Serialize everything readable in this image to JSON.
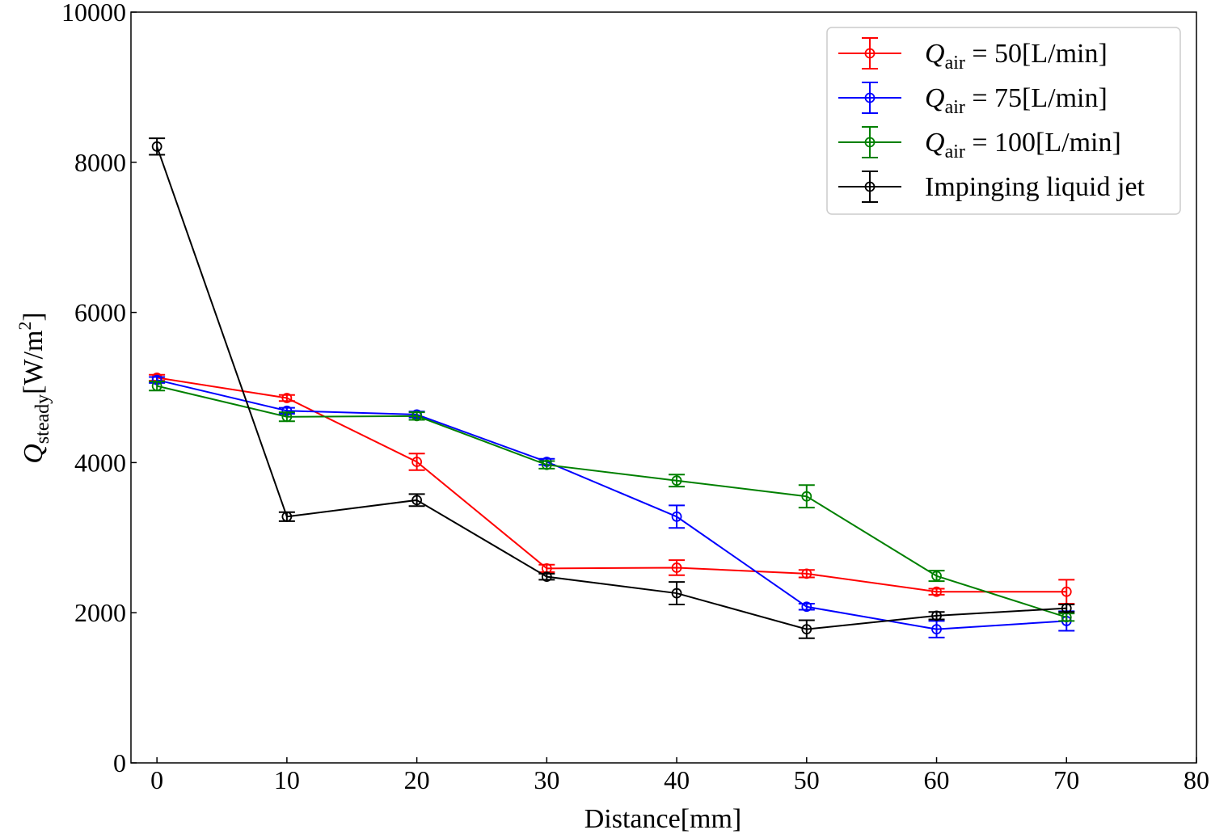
{
  "chart_data": {
    "type": "line",
    "title": "",
    "xlabel": "Distance[mm]",
    "ylabel": {
      "symbol": "Q",
      "subscript": "steady",
      "unit": "[W/m",
      "sup": "2",
      "close": "]"
    },
    "xlim": [
      -2,
      80
    ],
    "ylim": [
      0,
      10000
    ],
    "xticks": [
      0,
      10,
      20,
      30,
      40,
      50,
      60,
      70,
      80
    ],
    "yticks": [
      0,
      2000,
      4000,
      6000,
      8000,
      10000
    ],
    "grid": false,
    "legend_position": "top-right",
    "x": [
      0,
      10,
      20,
      30,
      40,
      50,
      60,
      70
    ],
    "series": [
      {
        "name": "Q_air = 50[L/min]",
        "label": {
          "sym": "Q",
          "sub": "air",
          "rest": " = 50[L/min]"
        },
        "color": "#ff0000",
        "values": [
          5130,
          4860,
          4010,
          2590,
          2600,
          2520,
          2280,
          2280
        ],
        "errors": [
          40,
          40,
          110,
          50,
          100,
          50,
          40,
          160
        ]
      },
      {
        "name": "Q_air = 75[L/min]",
        "label": {
          "sym": "Q",
          "sub": "air",
          "rest": " = 75[L/min]"
        },
        "color": "#0000ff",
        "values": [
          5100,
          4690,
          4640,
          4010,
          3280,
          2080,
          1780,
          1890
        ],
        "errors": [
          40,
          40,
          40,
          40,
          150,
          40,
          110,
          130
        ]
      },
      {
        "name": "Q_air = 100[L/min]",
        "label": {
          "sym": "Q",
          "sub": "air",
          "rest": " = 100[L/min]"
        },
        "color": "#008000",
        "values": [
          5020,
          4610,
          4620,
          3970,
          3760,
          3550,
          2490,
          1940
        ],
        "errors": [
          60,
          60,
          50,
          50,
          80,
          150,
          70,
          50
        ]
      },
      {
        "name": "Impinging liquid jet",
        "label": {
          "sym": "",
          "sub": "",
          "rest": "Impinging liquid jet"
        },
        "color": "#000000",
        "values": [
          8210,
          3280,
          3500,
          2480,
          2260,
          1780,
          1960,
          2060
        ],
        "errors": [
          110,
          60,
          80,
          40,
          150,
          120,
          50,
          50
        ]
      }
    ]
  }
}
